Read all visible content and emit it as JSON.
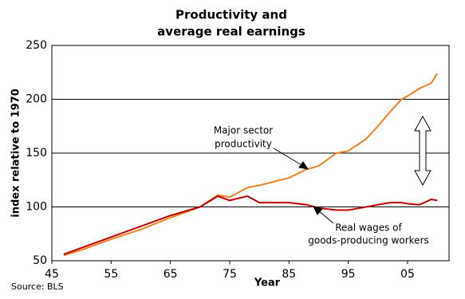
{
  "chart_data": {
    "type": "line",
    "title": [
      "Productivity and",
      "average real earnings"
    ],
    "x_label": "Year",
    "y_label": "index relative to 1970",
    "source": "Source: BLS",
    "x": [
      1947,
      1950,
      1955,
      1960,
      1965,
      1970,
      1973,
      1975,
      1978,
      1980,
      1985,
      1988,
      1990,
      1993,
      1995,
      1998,
      2000,
      2002,
      2004,
      2005,
      2007,
      2009,
      2010
    ],
    "series": [
      {
        "name": "Major sector productivity",
        "color": "#f08020",
        "values": [
          55,
          60,
          70,
          79,
          90,
          100,
          111,
          109,
          118,
          120,
          127,
          135,
          138,
          150,
          152,
          163,
          175,
          188,
          200,
          203,
          210,
          215,
          224
        ]
      },
      {
        "name": "Real wages of goods-producing workers",
        "color": "#c00000",
        "values": [
          56,
          62,
          72,
          82,
          92,
          100,
          110,
          106,
          110,
          104,
          104,
          102,
          99,
          97,
          97,
          100,
          102,
          104,
          104,
          103,
          102,
          107,
          106
        ]
      }
    ],
    "annotations": [
      [
        "Major sector",
        "productivity"
      ],
      [
        "Real wages of",
        "goods-producing workers"
      ]
    ],
    "xlim": [
      1945,
      2012
    ],
    "xticks": [
      {
        "value": 1945,
        "label": "45"
      },
      {
        "value": 1955,
        "label": "55"
      },
      {
        "value": 1965,
        "label": "65"
      },
      {
        "value": 1975,
        "label": "75"
      },
      {
        "value": 1985,
        "label": "85"
      },
      {
        "value": 1995,
        "label": "95"
      },
      {
        "value": 2005,
        "label": "05"
      }
    ],
    "ylim": [
      50,
      250
    ],
    "yticks": [
      50,
      100,
      150,
      200,
      250
    ],
    "grid": true
  }
}
